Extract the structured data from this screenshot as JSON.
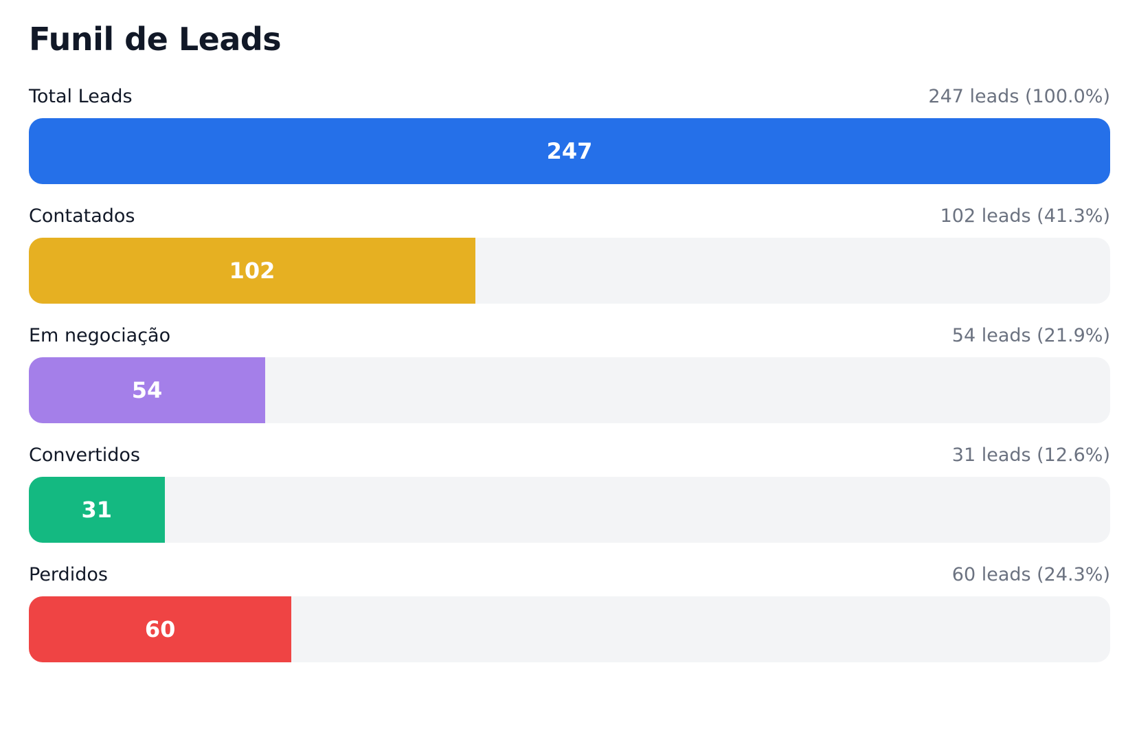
{
  "chart_data": {
    "type": "bar",
    "orientation": "horizontal",
    "title": "Funil de Leads",
    "categories": [
      "Total Leads",
      "Contatados",
      "Em negociação",
      "Convertidos",
      "Perdidos"
    ],
    "values": [
      247,
      102,
      54,
      31,
      60
    ],
    "value_labels": [
      "247 leads (100.0%)",
      "102 leads (41.3%)",
      "54 leads (21.9%)",
      "31 leads (12.6%)",
      "60 leads (24.3%)"
    ],
    "colors": [
      "#2570e9",
      "#e6b022",
      "#a47fe9",
      "#14b981",
      "#ef4444"
    ],
    "xlim": [
      0,
      247
    ]
  }
}
